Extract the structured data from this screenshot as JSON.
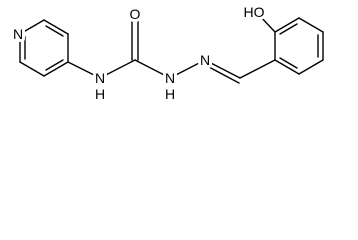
{
  "atoms": [
    {
      "label": "N"
    },
    {
      "label": "N",
      "h": "H"
    },
    {
      "label": "O"
    },
    {
      "label": "N",
      "h": "H"
    },
    {
      "label": "N"
    },
    {
      "label": "HO"
    }
  ]
}
